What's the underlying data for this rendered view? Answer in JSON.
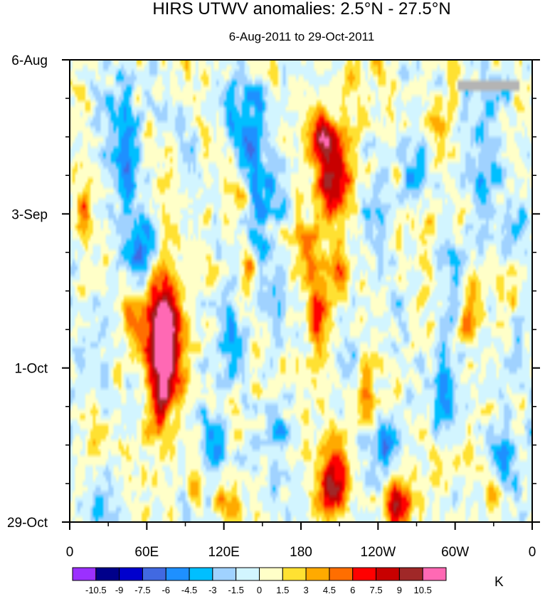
{
  "chart_data": {
    "type": "heatmap",
    "title": "HIRS UTWV anomalies: 2.5°N - 27.5°N",
    "subtitle": "6-Aug-2011 to 29-Oct-2011",
    "xlabel": "",
    "ylabel": "",
    "x_ticks": [
      "0",
      "60E",
      "120E",
      "180",
      "120W",
      "60W",
      "0"
    ],
    "x_tick_degrees": [
      0,
      60,
      120,
      180,
      240,
      300,
      360
    ],
    "xlim": [
      0,
      360
    ],
    "y_ticks": [
      "6-Aug",
      "3-Sep",
      "1-Oct",
      "29-Oct"
    ],
    "y_tick_days": [
      0,
      28,
      56,
      84
    ],
    "ylim": [
      0,
      84
    ],
    "colorbar_unit": "K",
    "colorbar_levels": [
      "-10.5",
      "-9",
      "-7.5",
      "-6",
      "-4.5",
      "-3",
      "-1.5",
      "0",
      "1.5",
      "3",
      "4.5",
      "6",
      "7.5",
      "9",
      "10.5"
    ],
    "colorbar_colors": [
      "#9b30ff",
      "#00008b",
      "#0000cd",
      "#4169e1",
      "#1e90ff",
      "#00bfff",
      "#a0d2ff",
      "#d2f5ff",
      "#ffffc8",
      "#ffe132",
      "#ffaa00",
      "#ff6e00",
      "#ff0000",
      "#c80000",
      "#a02828",
      "#ff69b4"
    ],
    "missing_color": "#b4b4b4",
    "features": [
      {
        "lon": 75,
        "day": 53,
        "value": 10,
        "sx": 9,
        "sy": 9
      },
      {
        "lon": 70,
        "day": 47,
        "value": 6,
        "sx": 10,
        "sy": 5
      },
      {
        "lon": 48,
        "day": 46,
        "value": 3.5,
        "sx": 6,
        "sy": 4
      },
      {
        "lon": 68,
        "day": 60,
        "value": 4,
        "sx": 6,
        "sy": 5
      },
      {
        "lon": 10,
        "day": 27,
        "value": 3,
        "sx": 5,
        "sy": 4
      },
      {
        "lon": 50,
        "day": 26,
        "value": 2.5,
        "sx": 5,
        "sy": 4
      },
      {
        "lon": 15,
        "day": 70,
        "value": 2.5,
        "sx": 5,
        "sy": 5
      },
      {
        "lon": 125,
        "day": 81,
        "value": 5,
        "sx": 6,
        "sy": 3
      },
      {
        "lon": 98,
        "day": 78,
        "value": 3.5,
        "sx": 5,
        "sy": 3
      },
      {
        "lon": 205,
        "day": 21,
        "value": 10,
        "sx": 9,
        "sy": 6
      },
      {
        "lon": 195,
        "day": 13,
        "value": 6,
        "sx": 7,
        "sy": 4
      },
      {
        "lon": 185,
        "day": 34,
        "value": 5,
        "sx": 8,
        "sy": 4
      },
      {
        "lon": 210,
        "day": 39,
        "value": 5,
        "sx": 6,
        "sy": 3
      },
      {
        "lon": 195,
        "day": 47,
        "value": 6,
        "sx": 6,
        "sy": 5
      },
      {
        "lon": 205,
        "day": 76,
        "value": 9,
        "sx": 9,
        "sy": 5
      },
      {
        "lon": 255,
        "day": 81,
        "value": 8,
        "sx": 7,
        "sy": 4
      },
      {
        "lon": 230,
        "day": 59,
        "value": 4,
        "sx": 7,
        "sy": 4
      },
      {
        "lon": 290,
        "day": 72,
        "value": 4,
        "sx": 6,
        "sy": 3
      },
      {
        "lon": 310,
        "day": 46,
        "value": 4.5,
        "sx": 5,
        "sy": 5
      },
      {
        "lon": 340,
        "day": 40,
        "value": 3,
        "sx": 5,
        "sy": 4
      },
      {
        "lon": 290,
        "day": 12,
        "value": 3,
        "sx": 6,
        "sy": 3
      },
      {
        "lon": 280,
        "day": 31,
        "value": 2.5,
        "sx": 5,
        "sy": 4
      },
      {
        "lon": 330,
        "day": 80,
        "value": 3,
        "sx": 5,
        "sy": 3
      },
      {
        "lon": 130,
        "day": 24,
        "value": 3.5,
        "sx": 6,
        "sy": 3
      },
      {
        "lon": 140,
        "day": 38,
        "value": 5,
        "sx": 3,
        "sy": 2
      },
      {
        "lon": 225,
        "day": 5,
        "value": 2.5,
        "sx": 6,
        "sy": 3
      },
      {
        "lon": 45,
        "day": 20,
        "value": -6.5,
        "sx": 6,
        "sy": 10
      },
      {
        "lon": 55,
        "day": 34,
        "value": -6,
        "sx": 6,
        "sy": 5
      },
      {
        "lon": 30,
        "day": 12,
        "value": -3,
        "sx": 6,
        "sy": 5
      },
      {
        "lon": 140,
        "day": 13,
        "value": -6.5,
        "sx": 7,
        "sy": 6
      },
      {
        "lon": 150,
        "day": 25,
        "value": -5,
        "sx": 7,
        "sy": 5
      },
      {
        "lon": 125,
        "day": 10,
        "value": -4,
        "sx": 5,
        "sy": 4
      },
      {
        "lon": 160,
        "day": 42,
        "value": -3.5,
        "sx": 6,
        "sy": 7
      },
      {
        "lon": 125,
        "day": 50,
        "value": -3,
        "sx": 6,
        "sy": 6
      },
      {
        "lon": 110,
        "day": 70,
        "value": -4,
        "sx": 7,
        "sy": 4
      },
      {
        "lon": 160,
        "day": 68,
        "value": -3.5,
        "sx": 6,
        "sy": 3
      },
      {
        "lon": 220,
        "day": 55,
        "value": -3,
        "sx": 6,
        "sy": 3
      },
      {
        "lon": 245,
        "day": 70,
        "value": -5,
        "sx": 8,
        "sy": 4
      },
      {
        "lon": 290,
        "day": 62,
        "value": -4.5,
        "sx": 7,
        "sy": 6
      },
      {
        "lon": 340,
        "day": 72,
        "value": -4.5,
        "sx": 8,
        "sy": 5
      },
      {
        "lon": 300,
        "day": 40,
        "value": -3.5,
        "sx": 6,
        "sy": 5
      },
      {
        "lon": 320,
        "day": 20,
        "value": -4,
        "sx": 6,
        "sy": 5
      },
      {
        "lon": 345,
        "day": 30,
        "value": -3,
        "sx": 5,
        "sy": 5
      },
      {
        "lon": 270,
        "day": 20,
        "value": -3,
        "sx": 6,
        "sy": 4
      },
      {
        "lon": 330,
        "day": 8,
        "value": -3,
        "sx": 6,
        "sy": 3
      },
      {
        "lon": 85,
        "day": 12,
        "value": -2.5,
        "sx": 5,
        "sy": 3
      },
      {
        "lon": 235,
        "day": 27,
        "value": -2.5,
        "sx": 6,
        "sy": 4
      },
      {
        "lon": 25,
        "day": 80,
        "value": -3,
        "sx": 5,
        "sy": 3
      },
      {
        "lon": 350,
        "day": 52,
        "value": -3,
        "sx": 4,
        "sy": 4
      },
      {
        "lon": 255,
        "day": 45,
        "value": -2.5,
        "sx": 5,
        "sy": 3
      }
    ],
    "missing_region": {
      "lon": [
        303,
        350
      ],
      "day": [
        4,
        6
      ]
    }
  }
}
